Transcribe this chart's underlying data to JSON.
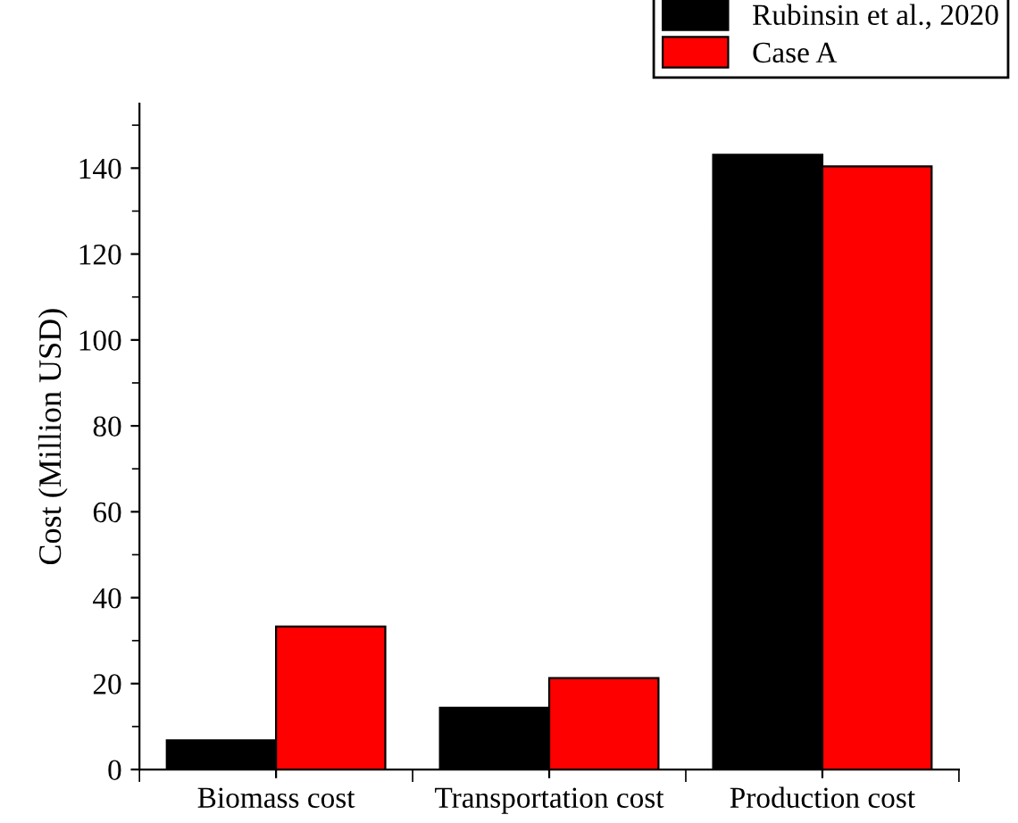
{
  "chart_data": {
    "type": "bar",
    "ylabel": "Cost (Million USD)",
    "categories": [
      "Biomass cost",
      "Transportation cost",
      "Production cost"
    ],
    "series": [
      {
        "name": "Rubinsin et al., 2020",
        "color": "#000000",
        "values": [
          6.8,
          14.4,
          143.1
        ]
      },
      {
        "name": "Case A",
        "color": "#ff0000",
        "values": [
          33.3,
          21.3,
          140.4
        ]
      }
    ],
    "ylim": [
      0,
      155
    ],
    "yticks": [
      0,
      20,
      40,
      60,
      80,
      100,
      120,
      140
    ],
    "grid": false,
    "legend": "top right"
  }
}
